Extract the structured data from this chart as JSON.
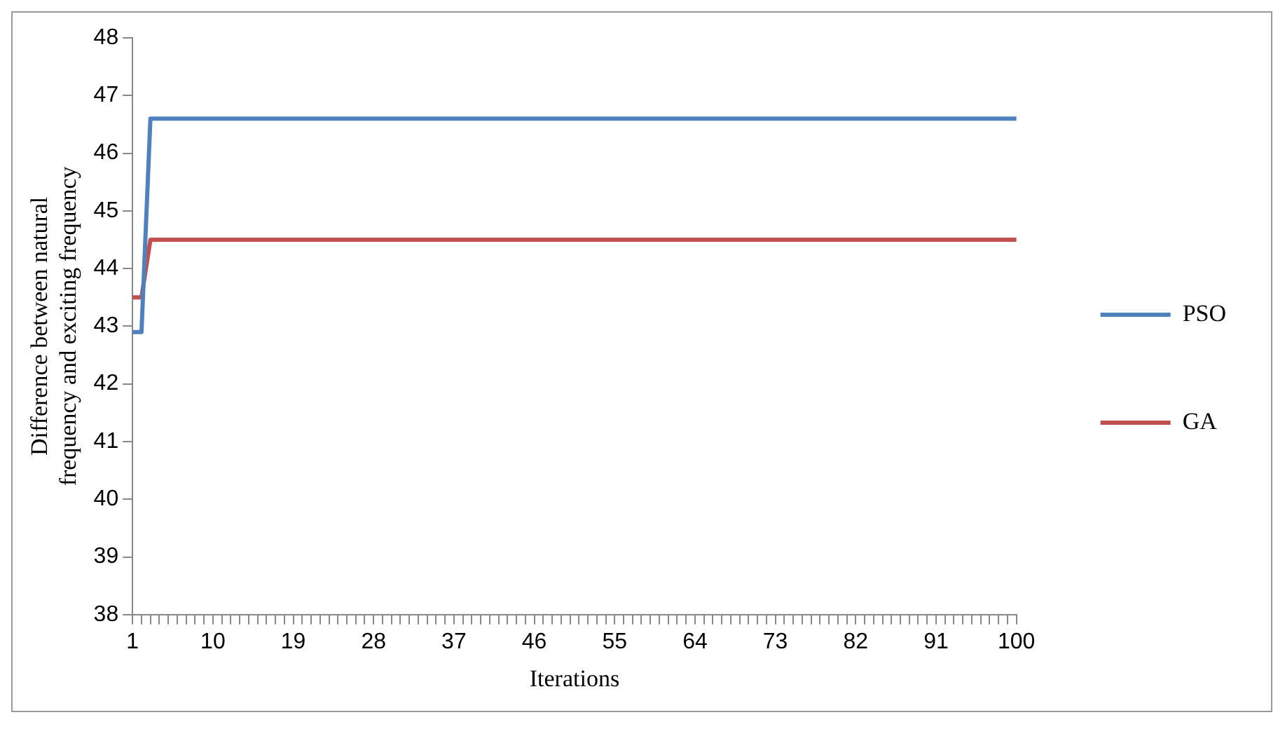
{
  "chart_data": {
    "type": "line",
    "xlabel": "Iterations",
    "ylabel": "Difference between natural frequency and exciting frequency",
    "categories": [
      "1",
      null,
      null,
      null,
      null,
      null,
      null,
      null,
      null,
      "10",
      null,
      null,
      null,
      null,
      null,
      null,
      null,
      null,
      "19",
      null,
      null,
      null,
      null,
      null,
      null,
      null,
      null,
      "28",
      null,
      null,
      null,
      null,
      null,
      null,
      null,
      null,
      "37",
      null,
      null,
      null,
      null,
      null,
      null,
      null,
      null,
      "46",
      null,
      null,
      null,
      null,
      null,
      null,
      null,
      null,
      "55",
      null,
      null,
      null,
      null,
      null,
      null,
      null,
      null,
      "64",
      null,
      null,
      null,
      null,
      null,
      null,
      null,
      null,
      "73",
      null,
      null,
      null,
      null,
      null,
      null,
      null,
      null,
      "82",
      null,
      null,
      null,
      null,
      null,
      null,
      null,
      null,
      "91",
      null,
      null,
      null,
      null,
      null,
      null,
      null,
      null,
      "100"
    ],
    "series": [
      {
        "name": "PSO",
        "color": "#4f81bd",
        "values": [
          42.9,
          42.9,
          46.6,
          46.6,
          46.6,
          46.6,
          46.6,
          46.6,
          46.6,
          46.6,
          46.6,
          46.6,
          46.6,
          46.6,
          46.6,
          46.6,
          46.6,
          46.6,
          46.6,
          46.6,
          46.6,
          46.6,
          46.6,
          46.6,
          46.6,
          46.6,
          46.6,
          46.6,
          46.6,
          46.6,
          46.6,
          46.6,
          46.6,
          46.6,
          46.6,
          46.6,
          46.6,
          46.6,
          46.6,
          46.6,
          46.6,
          46.6,
          46.6,
          46.6,
          46.6,
          46.6,
          46.6,
          46.6,
          46.6,
          46.6,
          46.6,
          46.6,
          46.6,
          46.6,
          46.6,
          46.6,
          46.6,
          46.6,
          46.6,
          46.6,
          46.6,
          46.6,
          46.6,
          46.6,
          46.6,
          46.6,
          46.6,
          46.6,
          46.6,
          46.6,
          46.6,
          46.6,
          46.6,
          46.6,
          46.6,
          46.6,
          46.6,
          46.6,
          46.6,
          46.6,
          46.6,
          46.6,
          46.6,
          46.6,
          46.6,
          46.6,
          46.6,
          46.6,
          46.6,
          46.6,
          46.6,
          46.6,
          46.6,
          46.6,
          46.6,
          46.6,
          46.6,
          46.6,
          46.6,
          46.6
        ]
      },
      {
        "name": "GA",
        "color": "#c0504d",
        "values": [
          43.5,
          43.5,
          44.5,
          44.5,
          44.5,
          44.5,
          44.5,
          44.5,
          44.5,
          44.5,
          44.5,
          44.5,
          44.5,
          44.5,
          44.5,
          44.5,
          44.5,
          44.5,
          44.5,
          44.5,
          44.5,
          44.5,
          44.5,
          44.5,
          44.5,
          44.5,
          44.5,
          44.5,
          44.5,
          44.5,
          44.5,
          44.5,
          44.5,
          44.5,
          44.5,
          44.5,
          44.5,
          44.5,
          44.5,
          44.5,
          44.5,
          44.5,
          44.5,
          44.5,
          44.5,
          44.5,
          44.5,
          44.5,
          44.5,
          44.5,
          44.5,
          44.5,
          44.5,
          44.5,
          44.5,
          44.5,
          44.5,
          44.5,
          44.5,
          44.5,
          44.5,
          44.5,
          44.5,
          44.5,
          44.5,
          44.5,
          44.5,
          44.5,
          44.5,
          44.5,
          44.5,
          44.5,
          44.5,
          44.5,
          44.5,
          44.5,
          44.5,
          44.5,
          44.5,
          44.5,
          44.5,
          44.5,
          44.5,
          44.5,
          44.5,
          44.5,
          44.5,
          44.5,
          44.5,
          44.5,
          44.5,
          44.5,
          44.5,
          44.5,
          44.5,
          44.5,
          44.5,
          44.5,
          44.5,
          44.5
        ]
      }
    ],
    "ylim": [
      38,
      48
    ],
    "yticks": [
      38,
      39,
      40,
      41,
      42,
      43,
      44,
      45,
      46,
      47,
      48
    ],
    "grid": false,
    "legend": "right",
    "marker": "none",
    "line_style": "solid"
  }
}
